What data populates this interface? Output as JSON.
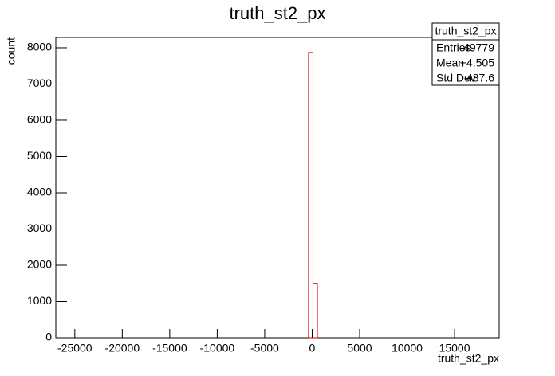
{
  "chart_data": {
    "type": "histogram",
    "title": "truth_st2_px",
    "x_label": "truth_st2_px",
    "y_label": "count",
    "bins": [
      -27000,
      -381,
      86,
      553,
      19700
    ],
    "values": [
      0,
      7870,
      1500,
      0
    ],
    "color": "#d00000",
    "xlim": [
      -27000,
      19700
    ],
    "ylim": [
      0,
      8285
    ],
    "xticks": [
      -25000,
      -20000,
      -15000,
      -10000,
      -5000,
      0,
      5000,
      10000,
      15000
    ],
    "yticks": [
      0,
      1000,
      2000,
      3000,
      4000,
      5000,
      6000,
      7000,
      8000
    ],
    "stats": {
      "title": "truth_st2_px",
      "rows": [
        [
          "Entries",
          "49779"
        ],
        [
          "Mean",
          "−4.505"
        ],
        [
          "Std Dev",
          "487.6"
        ]
      ]
    }
  }
}
